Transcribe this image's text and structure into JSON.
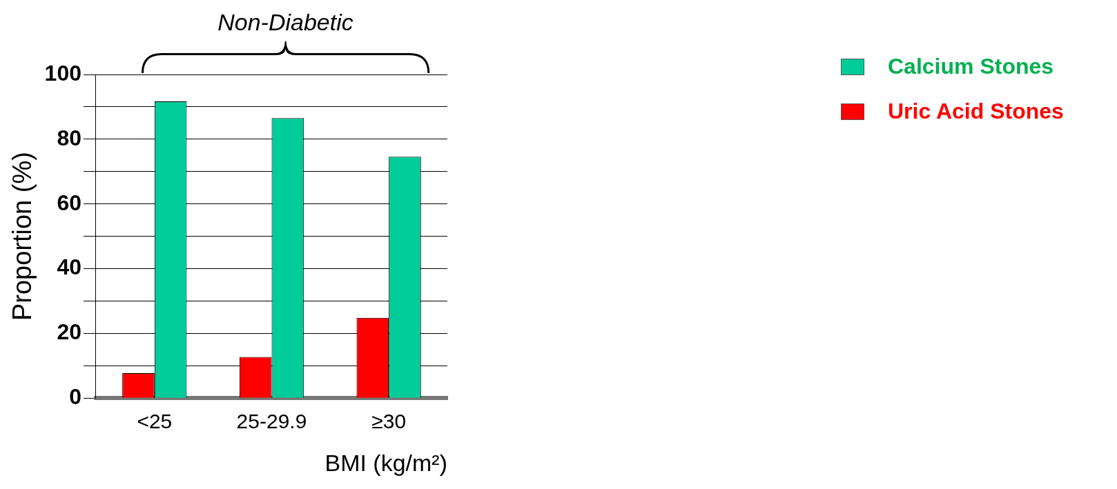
{
  "chart_data": {
    "type": "bar",
    "categories": [
      "<25",
      "25-29.9",
      "≥30"
    ],
    "series": [
      {
        "name": "Uric Acid Stones",
        "color": "#ff0000",
        "values": [
          7.7,
          12.7,
          24.8
        ]
      },
      {
        "name": "Calcium Stones",
        "color": "#00cc99",
        "values": [
          91.7,
          86.5,
          74.6
        ]
      }
    ],
    "ylabel": "Proportion (%)",
    "xlabel": "BMI (kg/m²)",
    "ylim": [
      0,
      100
    ],
    "yticks": [
      0,
      {
        "value": 10,
        "label": null
      },
      20,
      {
        "value": 30,
        "label": null
      },
      40,
      {
        "value": 50,
        "label": null
      },
      60,
      {
        "value": 70,
        "label": null
      },
      80,
      {
        "value": 90,
        "label": null
      },
      100
    ],
    "grid": "y",
    "legend": "top right",
    "annotations": [
      "Non-Diabetic"
    ]
  }
}
